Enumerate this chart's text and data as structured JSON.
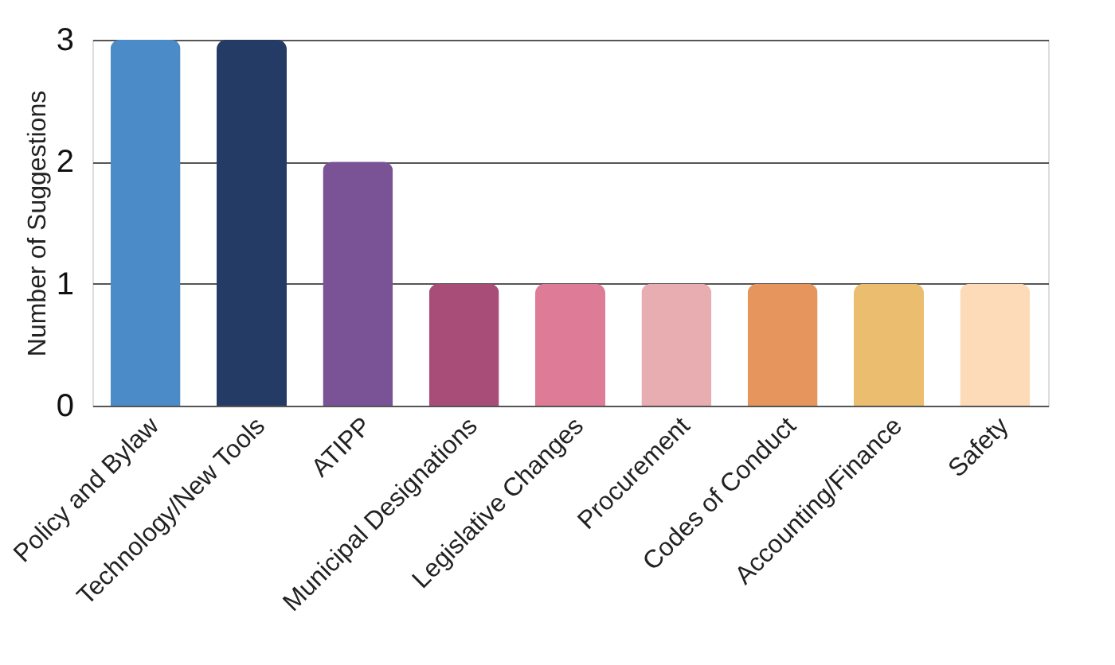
{
  "chart_data": {
    "type": "bar",
    "ylabel": "Number of Suggestions",
    "categories": [
      "Policy and Bylaw",
      "Technology/New Tools",
      "ATIPP",
      "Municipal Designations",
      "Legislative Changes",
      "Procurement",
      "Codes of Conduct",
      "Accounting/Finance",
      "Safety"
    ],
    "values": [
      3,
      3,
      2,
      1,
      1,
      1,
      1,
      1,
      1
    ],
    "colors": [
      "#4a8bc8",
      "#243b66",
      "#7a5296",
      "#a84d78",
      "#de7c97",
      "#e7adb0",
      "#e6955d",
      "#eabd6f",
      "#fddbb8"
    ],
    "ylim": [
      0,
      3
    ],
    "yticks": [
      0,
      1,
      2,
      3
    ],
    "grid": "y",
    "legend": false
  }
}
